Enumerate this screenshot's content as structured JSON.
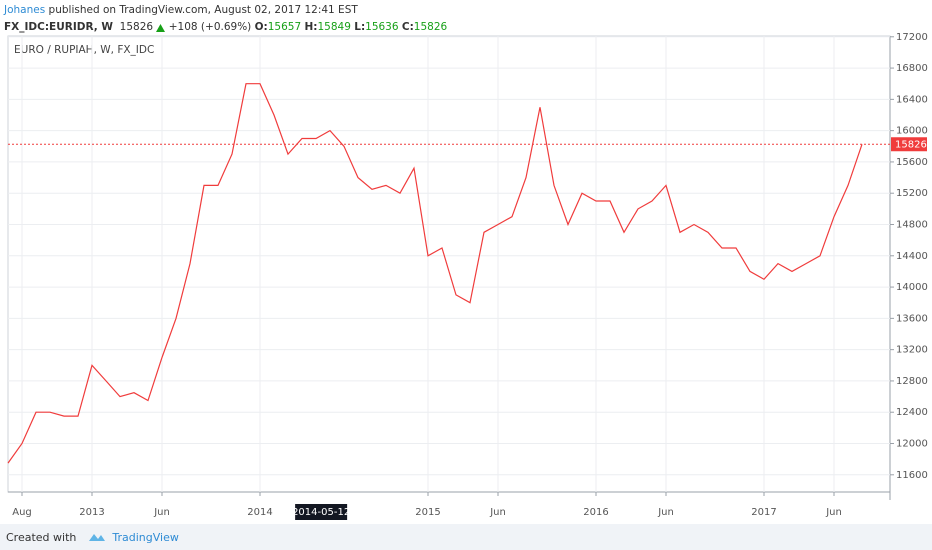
{
  "header": {
    "author": "Johanes",
    "published": "published on TradingView.com, August 02, 2017 12:41 EST",
    "symbol": "FX_IDC:EURIDR, W",
    "price": 15826,
    "change": "+108 (+0.69%)",
    "open_label": "O:",
    "open": 15657,
    "high_label": "H:",
    "high": 15849,
    "low_label": "L:",
    "low": 15636,
    "close_label": "C:",
    "close": 15826
  },
  "chart_data": {
    "type": "line",
    "title": "EURO / RUPIAH, W, FX_IDC",
    "color": "#f03c3c",
    "x": [
      "2012-07",
      "2012-08",
      "2012-09",
      "2012-10",
      "2012-11",
      "2012-12",
      "2013-01",
      "2013-02",
      "2013-03",
      "2013-04",
      "2013-05",
      "2013-06",
      "2013-07",
      "2013-08",
      "2013-09",
      "2013-10",
      "2013-11",
      "2013-12",
      "2014-01",
      "2014-02",
      "2014-03",
      "2014-04",
      "2014-05",
      "2014-06",
      "2014-07",
      "2014-08",
      "2014-09",
      "2014-10",
      "2014-11",
      "2014-12",
      "2015-01",
      "2015-02",
      "2015-03",
      "2015-04",
      "2015-05",
      "2015-06",
      "2015-07",
      "2015-08",
      "2015-09",
      "2015-10",
      "2015-11",
      "2015-12",
      "2016-01",
      "2016-02",
      "2016-03",
      "2016-04",
      "2016-05",
      "2016-06",
      "2016-07",
      "2016-08",
      "2016-09",
      "2016-10",
      "2016-11",
      "2016-12",
      "2017-01",
      "2017-02",
      "2017-03",
      "2017-04",
      "2017-05",
      "2017-06",
      "2017-07",
      "2017-08"
    ],
    "values": [
      11750,
      12000,
      12400,
      12400,
      12350,
      12350,
      13000,
      12800,
      12600,
      12650,
      12550,
      13100,
      13600,
      14300,
      15300,
      15300,
      15700,
      16600,
      16600,
      16200,
      15700,
      15900,
      15900,
      16000,
      15800,
      15400,
      15250,
      15300,
      15200,
      15520,
      14400,
      14500,
      13900,
      13800,
      14700,
      14800,
      14900,
      15400,
      16300,
      15300,
      14800,
      15200,
      15100,
      15100,
      14700,
      15000,
      15100,
      15300,
      14700,
      14800,
      14700,
      14500,
      14500,
      14200,
      14100,
      14300,
      14200,
      14300,
      14400,
      14900,
      15300,
      15826
    ],
    "xlim": [
      "2012-07",
      "2017-10"
    ],
    "xticks": [
      {
        "value": "2012-08",
        "label": "Aug"
      },
      {
        "value": "2013-01",
        "label": "2013"
      },
      {
        "value": "2013-06",
        "label": "Jun"
      },
      {
        "value": "2014-01",
        "label": "2014"
      },
      {
        "value": "2015-01",
        "label": "2015"
      },
      {
        "value": "2015-06",
        "label": "Jun"
      },
      {
        "value": "2016-01",
        "label": "2016"
      },
      {
        "value": "2016-06",
        "label": "Jun"
      },
      {
        "value": "2017-01",
        "label": "2017"
      },
      {
        "value": "2017-06",
        "label": "Jun"
      }
    ],
    "ylim": [
      11380,
      17210
    ],
    "yticks": [
      11600,
      12000,
      12400,
      12800,
      13200,
      13600,
      14000,
      14400,
      14800,
      15200,
      15600,
      16000,
      16400,
      16800,
      17200
    ],
    "grid": true,
    "last_value": 15826,
    "crosshair_label": "2014-05-12"
  },
  "footer": {
    "text": "Created with",
    "brand": "TradingView"
  }
}
